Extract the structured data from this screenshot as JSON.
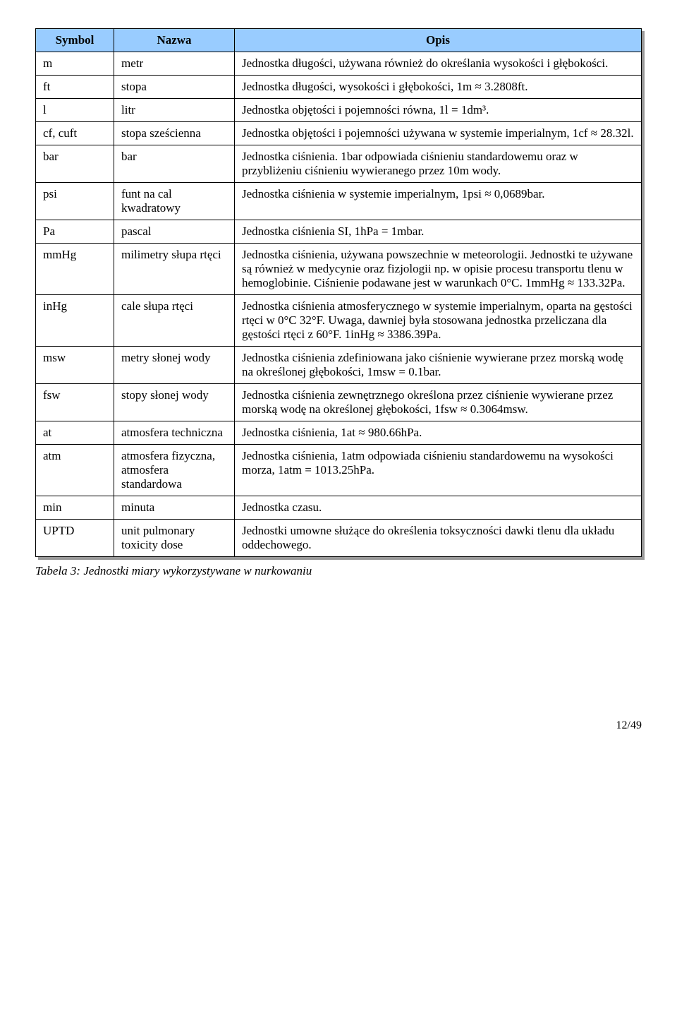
{
  "table": {
    "headers": [
      "Symbol",
      "Nazwa",
      "Opis"
    ],
    "rows": [
      {
        "sym": "m",
        "name": "metr",
        "desc": "Jednostka długości, używana również do określania wysokości i głębokości."
      },
      {
        "sym": "ft",
        "name": "stopa",
        "desc": "Jednostka długości, wysokości i głębokości, 1m ≈ 3.2808ft."
      },
      {
        "sym": "l",
        "name": "litr",
        "desc": "Jednostka objętości i pojemności równa, 1l = 1dm³."
      },
      {
        "sym": "cf, cuft",
        "name": "stopa sześcienna",
        "desc": "Jednostka objętości i pojemności używana w systemie imperialnym, 1cf ≈ 28.32l."
      },
      {
        "sym": "bar",
        "name": "bar",
        "desc": "Jednostka ciśnienia. 1bar odpowiada ciśnieniu standardowemu oraz w przybliżeniu ciśnieniu wywieranego przez 10m wody."
      },
      {
        "sym": "psi",
        "name": "funt na cal kwadratowy",
        "desc": "Jednostka ciśnienia w systemie imperialnym, 1psi ≈ 0,0689bar."
      },
      {
        "sym": "Pa",
        "name": "pascal",
        "desc": "Jednostka ciśnienia SI, 1hPa = 1mbar."
      },
      {
        "sym": "mmHg",
        "name": "milimetry słupa rtęci",
        "desc": "Jednostka ciśnienia, używana powszechnie w meteorologii. Jednostki te używane są również w medycynie oraz fizjologii np. w opisie procesu transportu tlenu w hemoglobinie. Ciśnienie podawane jest w warunkach 0°C. 1mmHg ≈ 133.32Pa."
      },
      {
        "sym": "inHg",
        "name": "cale słupa rtęci",
        "desc": "Jednostka ciśnienia atmosferycznego w systemie imperialnym, oparta na gęstości rtęci w 0°C 32°F. Uwaga, dawniej była stosowana jednostka przeliczana dla gęstości rtęci z 60°F. 1inHg ≈ 3386.39Pa."
      },
      {
        "sym": "msw",
        "name": "metry słonej wody",
        "desc": "Jednostka ciśnienia zdefiniowana jako ciśnienie wywierane przez morską wodę na określonej głębokości, 1msw = 0.1bar."
      },
      {
        "sym": "fsw",
        "name": "stopy słonej wody",
        "desc": "Jednostka ciśnienia zewnętrznego określona przez ciśnienie wywierane przez morską wodę na określonej głębokości, 1fsw ≈ 0.3064msw."
      },
      {
        "sym": "at",
        "name": "atmosfera techniczna",
        "desc": "Jednostka ciśnienia, 1at ≈ 980.66hPa."
      },
      {
        "sym": "atm",
        "name": "atmosfera fizyczna, atmosfera standardowa",
        "desc": "Jednostka ciśnienia, 1atm odpowiada ciśnieniu standardowemu na wysokości morza, 1atm = 1013.25hPa."
      },
      {
        "sym": "min",
        "name": "minuta",
        "desc": "Jednostka czasu."
      },
      {
        "sym": "UPTD",
        "name": "unit pulmonary toxicity dose",
        "desc": "Jednostki umowne służące do określenia toksyczności dawki tlenu dla układu oddechowego."
      }
    ]
  },
  "caption": "Tabela 3: Jednostki miary wykorzystywane w nurkowaniu",
  "page_number": "12/49"
}
